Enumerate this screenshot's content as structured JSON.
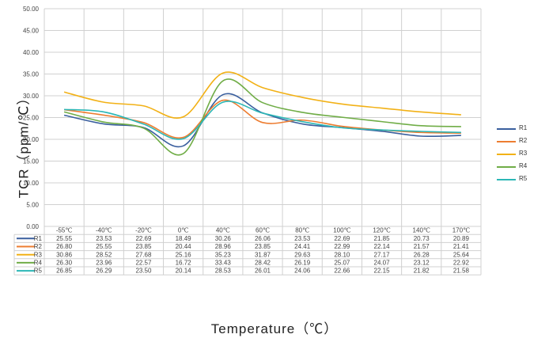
{
  "chart_data": {
    "type": "line",
    "xlabel": "Temperature（℃）",
    "ylabel": "TCR（ppm/℃）",
    "ylim": [
      0,
      50
    ],
    "yticks": [
      "0.00",
      "5.00",
      "10.00",
      "15.00",
      "20.00",
      "25.00",
      "30.00",
      "35.00",
      "40.00",
      "45.00",
      "50.00"
    ],
    "categories": [
      "-55℃",
      "-40℃",
      "-20℃",
      "0℃",
      "40℃",
      "60℃",
      "80℃",
      "100℃",
      "120℃",
      "140℃",
      "170℃"
    ],
    "grid": true,
    "legend_position": "right",
    "data_table": true,
    "series": [
      {
        "name": "R1",
        "color": "#3a5f9e",
        "values": [
          25.55,
          23.53,
          22.69,
          18.49,
          30.26,
          26.06,
          23.53,
          22.69,
          21.85,
          20.73,
          20.89
        ],
        "display": [
          "25.55",
          "23.53",
          "22.69",
          "18.49",
          "30.26",
          "26.06",
          "23.53",
          "22.69",
          "21.85",
          "20.73",
          "20.89"
        ]
      },
      {
        "name": "R2",
        "color": "#ed7d31",
        "values": [
          26.8,
          25.55,
          23.85,
          20.44,
          28.96,
          23.85,
          24.41,
          22.99,
          22.14,
          21.57,
          21.41
        ],
        "display": [
          "26.80",
          "25.55",
          "23.85",
          "20.44",
          "28.96",
          "23.85",
          "24.41",
          "22.99",
          "22.14",
          "21.57",
          "21.41"
        ]
      },
      {
        "name": "R3",
        "color": "#f2b116",
        "values": [
          30.86,
          28.52,
          27.68,
          25.16,
          35.23,
          31.87,
          29.63,
          28.1,
          27.17,
          26.28,
          25.64
        ],
        "display": [
          "30.86",
          "28.52",
          "27.68",
          "25.16",
          "35.23",
          "31.87",
          "29.63",
          "28.10",
          "27.17",
          "26.28",
          "25.64"
        ]
      },
      {
        "name": "R4",
        "color": "#70ad47",
        "values": [
          26.3,
          23.96,
          22.57,
          16.72,
          33.43,
          28.42,
          26.19,
          25.07,
          24.07,
          23.12,
          22.92
        ],
        "display": [
          "26.30",
          "23.96",
          "22.57",
          "16.72",
          "33.43",
          "28.42",
          "26.19",
          "25.07",
          "24.07",
          "23.12",
          "22.92"
        ]
      },
      {
        "name": "R5",
        "color": "#2cb7b6",
        "values": [
          26.85,
          26.29,
          23.5,
          20.14,
          28.53,
          26.01,
          24.06,
          22.66,
          22.15,
          21.82,
          21.58
        ],
        "display": [
          "26.85",
          "26.29",
          "23.50",
          "20.14",
          "28.53",
          "26.01",
          "24.06",
          "22.66",
          "22.15",
          "21.82",
          "21.58"
        ]
      }
    ]
  }
}
